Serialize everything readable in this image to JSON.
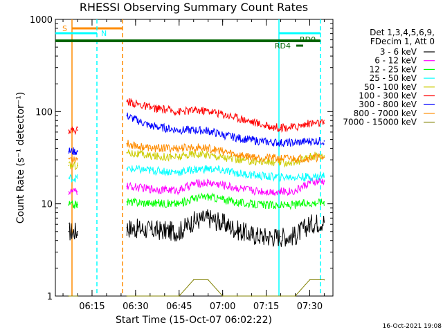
{
  "chart_data": {
    "type": "line",
    "title": "RHESSI Observing Summary Count Rates",
    "xlabel": "Start Time (15-Oct-07 06:02:22)",
    "ylabel": "Count Rate (s⁻¹ detector⁻¹)",
    "y_scale": "log",
    "ylim": [
      1,
      1000
    ],
    "xlim": [
      "06:02:22",
      "07:38:00"
    ],
    "x_ticks": [
      "06:15",
      "06:30",
      "06:45",
      "07:00",
      "07:15",
      "07:30"
    ],
    "y_ticks": [
      "1",
      "10",
      "100",
      "1000"
    ],
    "legend": {
      "header": [
        "Det 1,3,4,5,6,9,",
        "FDecim 1, Att 0"
      ],
      "position": "right"
    },
    "series": [
      {
        "name": "3 - 6 keV",
        "color": "#000000",
        "x": [
          "06:07",
          "06:10",
          "06:27",
          "06:35",
          "06:45",
          "06:50",
          "06:55",
          "07:00",
          "07:05",
          "07:10",
          "07:15",
          "07:20",
          "07:25",
          "07:30",
          "07:35"
        ],
        "y": [
          5.0,
          5.0,
          5.5,
          5.2,
          5.0,
          6.5,
          7.0,
          6.2,
          5.2,
          4.6,
          4.4,
          4.4,
          4.5,
          6.0,
          6.5
        ]
      },
      {
        "name": "6 - 12 keV",
        "color": "#ff00ff",
        "x": [
          "06:07",
          "06:10",
          "06:27",
          "06:35",
          "06:45",
          "06:50",
          "06:55",
          "07:00",
          "07:05",
          "07:10",
          "07:15",
          "07:20",
          "07:25",
          "07:30",
          "07:35"
        ],
        "y": [
          13.5,
          13.5,
          15.5,
          14.5,
          14.0,
          16.5,
          17.0,
          16.0,
          14.8,
          14.0,
          13.6,
          13.5,
          13.8,
          17.0,
          17.5
        ]
      },
      {
        "name": "12 - 25 keV",
        "color": "#00ff00",
        "x": [
          "06:07",
          "06:10",
          "06:27",
          "06:35",
          "06:45",
          "06:50",
          "06:55",
          "07:00",
          "07:05",
          "07:10",
          "07:15",
          "07:20",
          "07:25",
          "07:30",
          "07:35"
        ],
        "y": [
          9.8,
          9.8,
          10.5,
          10.2,
          10.0,
          11.5,
          12.0,
          11.2,
          10.4,
          9.9,
          9.7,
          9.6,
          9.8,
          10.2,
          10.5
        ]
      },
      {
        "name": "25 - 50 keV",
        "color": "#00ffff",
        "x": [
          "06:07",
          "06:10",
          "06:27",
          "06:35",
          "06:45",
          "06:50",
          "06:55",
          "07:00",
          "07:05",
          "07:10",
          "07:15",
          "07:20",
          "07:25",
          "07:30",
          "07:35"
        ],
        "y": [
          19.0,
          19.0,
          24.0,
          23.0,
          22.0,
          23.5,
          24.0,
          23.0,
          21.5,
          20.5,
          19.8,
          19.5,
          19.5,
          19.5,
          20.0
        ]
      },
      {
        "name": "50 - 100 keV",
        "color": "#cccc00",
        "x": [
          "06:07",
          "06:10",
          "06:27",
          "06:35",
          "06:45",
          "06:50",
          "06:55",
          "07:00",
          "07:05",
          "07:10",
          "07:15",
          "07:20",
          "07:25",
          "07:30",
          "07:35"
        ],
        "y": [
          26.0,
          26.0,
          36.0,
          33.0,
          32.0,
          35.0,
          34.0,
          32.0,
          30.0,
          29.0,
          28.5,
          28.0,
          28.0,
          33.0,
          33.0
        ]
      },
      {
        "name": "100 - 300 keV",
        "color": "#ff0000",
        "x": [
          "06:07",
          "06:10",
          "06:27",
          "06:35",
          "06:45",
          "06:50",
          "06:55",
          "07:00",
          "07:05",
          "07:10",
          "07:15",
          "07:20",
          "07:25",
          "07:30",
          "07:35"
        ],
        "y": [
          63.0,
          63.0,
          130.0,
          110.0,
          100.0,
          103.0,
          102.0,
          94.0,
          86.0,
          78.0,
          70.0,
          67.0,
          68.0,
          75.0,
          75.0
        ]
      },
      {
        "name": "300 - 800 keV",
        "color": "#0000ff",
        "x": [
          "06:07",
          "06:10",
          "06:27",
          "06:35",
          "06:45",
          "06:50",
          "06:55",
          "07:00",
          "07:05",
          "07:10",
          "07:15",
          "07:20",
          "07:25",
          "07:30",
          "07:35"
        ],
        "y": [
          37.0,
          37.0,
          90.0,
          70.0,
          63.0,
          63.0,
          62.0,
          56.0,
          52.0,
          49.0,
          47.0,
          46.0,
          46.0,
          48.0,
          48.0
        ]
      },
      {
        "name": "800 - 7000 keV",
        "color": "#ff8c00",
        "x": [
          "06:07",
          "06:10",
          "06:27",
          "06:35",
          "06:45",
          "06:50",
          "06:55",
          "07:00",
          "07:05",
          "07:10",
          "07:15",
          "07:20",
          "07:25",
          "07:30",
          "07:35"
        ],
        "y": [
          31.0,
          31.0,
          45.0,
          40.0,
          40.0,
          41.0,
          40.0,
          37.0,
          34.0,
          32.5,
          31.5,
          31.0,
          31.0,
          31.5,
          32.0
        ]
      },
      {
        "name": "7000 - 15000 keV",
        "color": "#808000",
        "x": [
          "06:07",
          "06:10",
          "06:27",
          "06:35",
          "06:45",
          "06:50",
          "06:55",
          "07:00",
          "07:05",
          "07:10",
          "07:15",
          "07:20",
          "07:25",
          "07:30",
          "07:35"
        ],
        "y": [
          1.0,
          1.0,
          1.0,
          1.0,
          1.0,
          1.5,
          1.5,
          1.0,
          1.0,
          1.0,
          1.0,
          1.0,
          1.0,
          1.5,
          1.5
        ]
      }
    ],
    "annotations": [
      {
        "text": "S",
        "color": "#ff8c00"
      },
      {
        "text": "N",
        "color": "#00ffff"
      },
      {
        "text": "RD0",
        "color": "#006400"
      },
      {
        "text": "RD4",
        "color": "#006400"
      }
    ],
    "footer": "16-Oct-2021 19:08"
  }
}
